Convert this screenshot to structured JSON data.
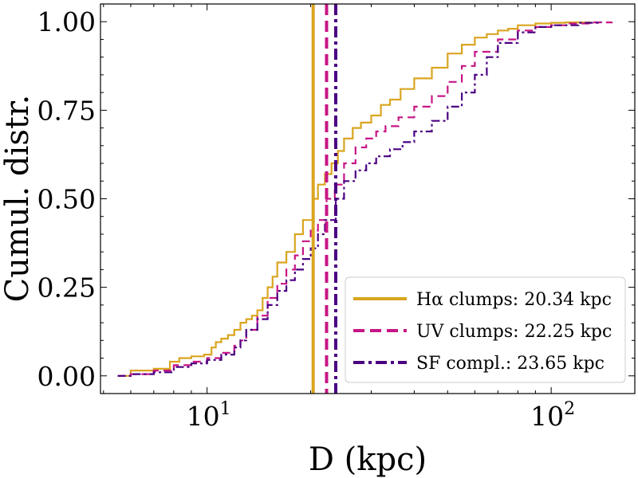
{
  "chart_data": {
    "type": "line",
    "xlabel": "D (kpc)",
    "ylabel": "Cumul. distr.",
    "xscale": "log",
    "xlim": [
      4.9,
      175
    ],
    "ylim": [
      -0.05,
      1.05
    ],
    "x_tick_labels": [
      {
        "value": 10,
        "base": "10",
        "exp": "1"
      },
      {
        "value": 100,
        "base": "10",
        "exp": "2"
      }
    ],
    "y_ticks": [
      0.0,
      0.25,
      0.5,
      0.75,
      1.0
    ],
    "y_tick_labels": [
      "0.00",
      "0.25",
      "0.50",
      "0.75",
      "1.00"
    ],
    "grid": false,
    "legend_position": "lower-right",
    "series": [
      {
        "name": "Hα clumps: 20.34 kpc",
        "color": "#DAA520",
        "style": "solid",
        "median": 20.34,
        "x": [
          5.6,
          6.0,
          7.0,
          7.8,
          8.3,
          9.0,
          9.8,
          10.3,
          10.6,
          11.0,
          11.5,
          12.0,
          12.5,
          13.0,
          13.5,
          14.0,
          14.5,
          15.0,
          15.5,
          16.0,
          17.0,
          18.0,
          19.0,
          20.3,
          21.0,
          22.0,
          23.0,
          24.0,
          25.0,
          26.5,
          28.0,
          30.0,
          32.0,
          34.0,
          36.5,
          40.0,
          45.0,
          50.0,
          55.0,
          60.0,
          65.0,
          70.0,
          75.0,
          80.0,
          90.0,
          100.0,
          110.0,
          130.0
        ],
        "y": [
          0.0,
          0.015,
          0.02,
          0.04,
          0.05,
          0.055,
          0.06,
          0.08,
          0.095,
          0.105,
          0.115,
          0.13,
          0.15,
          0.16,
          0.17,
          0.185,
          0.22,
          0.25,
          0.28,
          0.32,
          0.35,
          0.4,
          0.44,
          0.5,
          0.54,
          0.57,
          0.6,
          0.635,
          0.67,
          0.7,
          0.715,
          0.735,
          0.765,
          0.78,
          0.81,
          0.84,
          0.87,
          0.91,
          0.935,
          0.955,
          0.965,
          0.975,
          0.98,
          0.99,
          0.995,
          0.997,
          0.998,
          1.0
        ]
      },
      {
        "name": "UV clumps: 22.25 kpc",
        "color": "#C71585",
        "style": "dashed",
        "median": 22.25,
        "x": [
          5.5,
          6.0,
          7.0,
          8.0,
          9.0,
          10.0,
          11.0,
          12.0,
          12.5,
          13.0,
          14.0,
          15.0,
          16.0,
          17.0,
          18.0,
          19.0,
          20.0,
          21.0,
          22.25,
          23.5,
          25.0,
          27.0,
          29.0,
          31.0,
          33.0,
          36.0,
          40.0,
          45.0,
          50.0,
          55.0,
          60.0,
          70.0,
          80.0,
          90.0,
          100.0,
          110.0,
          130.0,
          150.0
        ],
        "y": [
          0.0,
          0.005,
          0.015,
          0.03,
          0.04,
          0.05,
          0.065,
          0.085,
          0.1,
          0.13,
          0.17,
          0.22,
          0.26,
          0.3,
          0.34,
          0.38,
          0.41,
          0.44,
          0.5,
          0.54,
          0.6,
          0.645,
          0.67,
          0.69,
          0.705,
          0.73,
          0.76,
          0.79,
          0.83,
          0.875,
          0.915,
          0.95,
          0.975,
          0.985,
          0.99,
          0.995,
          0.998,
          1.0
        ]
      },
      {
        "name": "SF compl.: 23.65 kpc",
        "color": "#4B0082",
        "style": "dashdot",
        "median": 23.65,
        "x": [
          5.5,
          6.0,
          7.0,
          8.0,
          9.0,
          10.0,
          11.0,
          12.0,
          12.5,
          13.0,
          14.0,
          15.0,
          16.0,
          17.0,
          18.0,
          19.0,
          20.0,
          21.0,
          22.0,
          23.65,
          25.0,
          27.0,
          29.0,
          31.0,
          34.0,
          37.0,
          40.0,
          45.0,
          50.0,
          55.0,
          60.0,
          65.0,
          70.0,
          80.0,
          90.0,
          100.0,
          120.0,
          140.0
        ],
        "y": [
          0.0,
          0.005,
          0.01,
          0.025,
          0.035,
          0.045,
          0.06,
          0.08,
          0.1,
          0.13,
          0.16,
          0.2,
          0.24,
          0.27,
          0.3,
          0.33,
          0.36,
          0.4,
          0.44,
          0.5,
          0.55,
          0.58,
          0.6,
          0.62,
          0.64,
          0.66,
          0.69,
          0.72,
          0.76,
          0.8,
          0.85,
          0.9,
          0.94,
          0.97,
          0.985,
          0.99,
          0.997,
          1.0
        ]
      }
    ]
  }
}
